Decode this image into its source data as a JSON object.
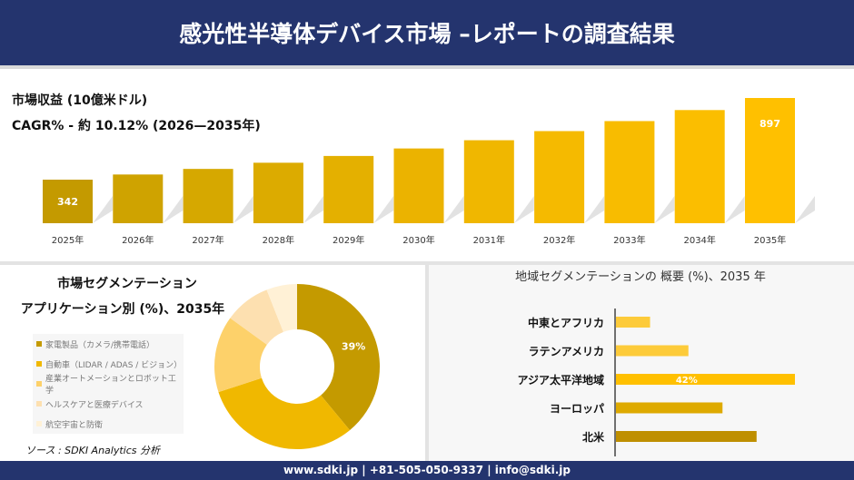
{
  "header": {
    "title": "感光性半導体デバイス市場 –レポートの調査結果"
  },
  "revenue": {
    "label": "市場収益 (10億米ドル)",
    "cagr": "CAGR% - 約 10.12% (2026—2035年)"
  },
  "chart_data": [
    {
      "type": "bar",
      "categories": [
        "2025年",
        "2026年",
        "2027年",
        "2028年",
        "2029年",
        "2030年",
        "2031年",
        "2032年",
        "2033年",
        "2034年",
        "2035年"
      ],
      "values": [
        342,
        377,
        415,
        457,
        503,
        554,
        610,
        672,
        740,
        815,
        897
      ],
      "data_labels": {
        "2025年": "342",
        "2035年": "897"
      },
      "colors": [
        "#c49a00",
        "#cfa300",
        "#d6a800",
        "#dcab00",
        "#e4b000",
        "#ebb300",
        "#f0b700",
        "#f5ba00",
        "#f8bc00",
        "#fbbe00",
        "#ffc000"
      ]
    },
    {
      "type": "pie",
      "title": "市場セグメンテーション",
      "subtitle": "アプリケーション別 (%)、2035年",
      "categories": [
        "家電製品（カメラ/携帯電話）",
        "自動車（LIDAR / ADAS / ビジョン）",
        "産業オートメーションとロボット工学",
        "ヘルスケアと医療デバイス",
        "航空宇宙と防衛"
      ],
      "values": [
        39,
        31,
        15,
        9,
        6
      ],
      "data_labels": [
        "39%"
      ],
      "colors": [
        "#c49a00",
        "#f0b800",
        "#fdd16a",
        "#fde0b0",
        "#fff1d6"
      ],
      "legend": "left"
    },
    {
      "type": "bar",
      "orientation": "horizontal",
      "title": "地域セグメンテーションの 概要 (%)、2035 年",
      "categories": [
        "中東とアフリカ",
        "ラテンアメリカ",
        "アジア太平洋地域",
        "ヨーロッパ",
        "北米"
      ],
      "values": [
        8,
        17,
        42,
        25,
        33
      ],
      "data_labels": {
        "アジア太平洋地域": "42%"
      },
      "colors": [
        "#fdcb3a",
        "#fdcb3a",
        "#ffc000",
        "#deaa00",
        "#bf8f00"
      ]
    }
  ],
  "source": "ソース : SDKI Analytics 分析",
  "footer": "www.sdki.jp | +81-505-050-9337 | info@sdki.jp"
}
